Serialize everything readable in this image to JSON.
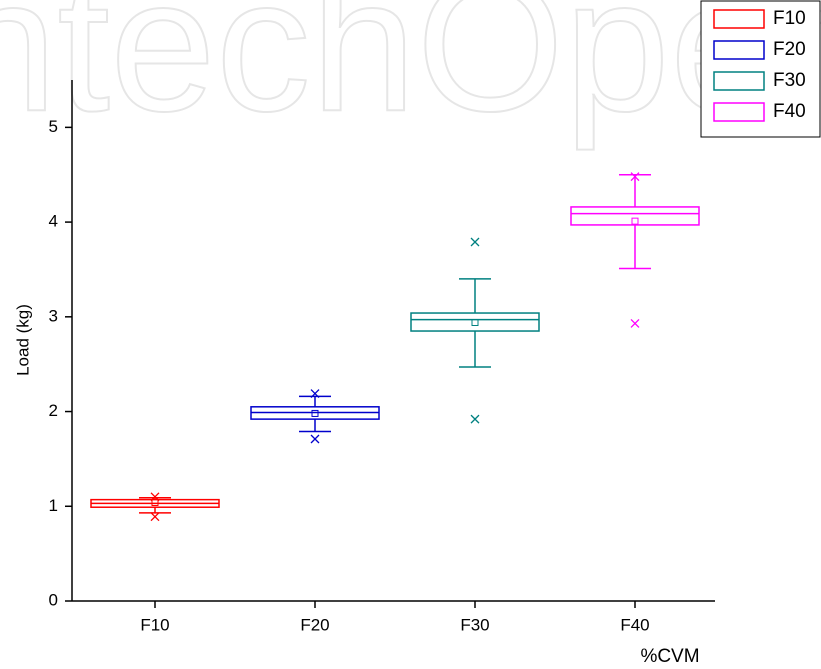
{
  "chart_data": {
    "type": "box",
    "watermark": "IntechOpen",
    "y_label": "Load (kg)",
    "x_label": "%CVM",
    "categories": [
      "F10",
      "F20",
      "F30",
      "F40"
    ],
    "ylim": [
      0,
      5.5
    ],
    "yticks": [
      0,
      1,
      2,
      3,
      4,
      5
    ],
    "legend": "top-right",
    "series": [
      {
        "name": "F10",
        "color": "#ff0000",
        "min": 0.93,
        "q1": 0.99,
        "median": 1.03,
        "q3": 1.07,
        "max": 1.09,
        "mean": 1.04,
        "outliers": [
          0.89,
          1.1
        ]
      },
      {
        "name": "F20",
        "color": "#0000cc",
        "min": 1.79,
        "q1": 1.92,
        "median": 1.99,
        "q3": 2.05,
        "max": 2.16,
        "mean": 1.98,
        "outliers": [
          1.71,
          2.19
        ]
      },
      {
        "name": "F30",
        "color": "#008080",
        "min": 2.47,
        "q1": 2.85,
        "median": 2.97,
        "q3": 3.04,
        "max": 3.4,
        "mean": 2.94,
        "outliers": [
          1.92,
          3.79
        ]
      },
      {
        "name": "F40",
        "color": "#ff00ff",
        "min": 3.51,
        "q1": 3.97,
        "median": 4.09,
        "q3": 4.16,
        "max": 4.5,
        "mean": 4.01,
        "outliers": [
          2.93,
          4.48
        ]
      }
    ]
  }
}
